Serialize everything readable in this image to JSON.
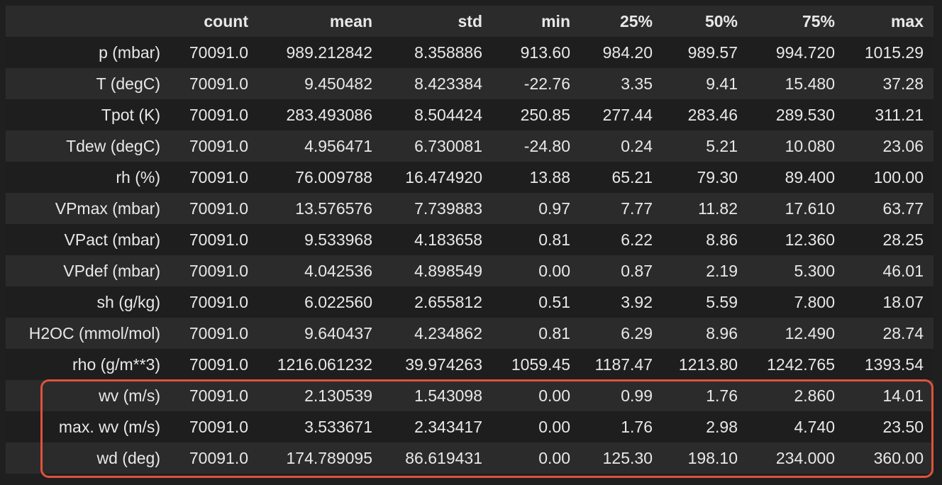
{
  "table": {
    "columns": [
      "count",
      "mean",
      "std",
      "min",
      "25%",
      "50%",
      "75%",
      "max"
    ],
    "rows": [
      {
        "index": "p (mbar)",
        "values": [
          "70091.0",
          "989.212842",
          "8.358886",
          "913.60",
          "984.20",
          "989.57",
          "994.720",
          "1015.29"
        ]
      },
      {
        "index": "T (degC)",
        "values": [
          "70091.0",
          "9.450482",
          "8.423384",
          "-22.76",
          "3.35",
          "9.41",
          "15.480",
          "37.28"
        ]
      },
      {
        "index": "Tpot (K)",
        "values": [
          "70091.0",
          "283.493086",
          "8.504424",
          "250.85",
          "277.44",
          "283.46",
          "289.530",
          "311.21"
        ]
      },
      {
        "index": "Tdew (degC)",
        "values": [
          "70091.0",
          "4.956471",
          "6.730081",
          "-24.80",
          "0.24",
          "5.21",
          "10.080",
          "23.06"
        ]
      },
      {
        "index": "rh (%)",
        "values": [
          "70091.0",
          "76.009788",
          "16.474920",
          "13.88",
          "65.21",
          "79.30",
          "89.400",
          "100.00"
        ]
      },
      {
        "index": "VPmax (mbar)",
        "values": [
          "70091.0",
          "13.576576",
          "7.739883",
          "0.97",
          "7.77",
          "11.82",
          "17.610",
          "63.77"
        ]
      },
      {
        "index": "VPact (mbar)",
        "values": [
          "70091.0",
          "9.533968",
          "4.183658",
          "0.81",
          "6.22",
          "8.86",
          "12.360",
          "28.25"
        ]
      },
      {
        "index": "VPdef (mbar)",
        "values": [
          "70091.0",
          "4.042536",
          "4.898549",
          "0.00",
          "0.87",
          "2.19",
          "5.300",
          "46.01"
        ]
      },
      {
        "index": "sh (g/kg)",
        "values": [
          "70091.0",
          "6.022560",
          "2.655812",
          "0.51",
          "3.92",
          "5.59",
          "7.800",
          "18.07"
        ]
      },
      {
        "index": "H2OC (mmol/mol)",
        "values": [
          "70091.0",
          "9.640437",
          "4.234862",
          "0.81",
          "6.29",
          "8.96",
          "12.490",
          "28.74"
        ]
      },
      {
        "index": "rho (g/m**3)",
        "values": [
          "70091.0",
          "1216.061232",
          "39.974263",
          "1059.45",
          "1187.47",
          "1213.80",
          "1242.765",
          "1393.54"
        ]
      },
      {
        "index": "wv (m/s)",
        "values": [
          "70091.0",
          "2.130539",
          "1.543098",
          "0.00",
          "0.99",
          "1.76",
          "2.860",
          "14.01"
        ]
      },
      {
        "index": "max. wv (m/s)",
        "values": [
          "70091.0",
          "3.533671",
          "2.343417",
          "0.00",
          "1.76",
          "2.98",
          "4.740",
          "23.50"
        ]
      },
      {
        "index": "wd (deg)",
        "values": [
          "70091.0",
          "174.789095",
          "86.619431",
          "0.00",
          "125.30",
          "198.10",
          "234.000",
          "360.00"
        ]
      }
    ]
  },
  "highlight": {
    "rows": [
      "wv (m/s)",
      "max. wv (m/s)",
      "wd (deg)"
    ],
    "color": "#e0523a"
  },
  "colors": {
    "background": "#1f1f1f",
    "row_alt": "#2b2b2b",
    "text": "#e8e8e8"
  }
}
